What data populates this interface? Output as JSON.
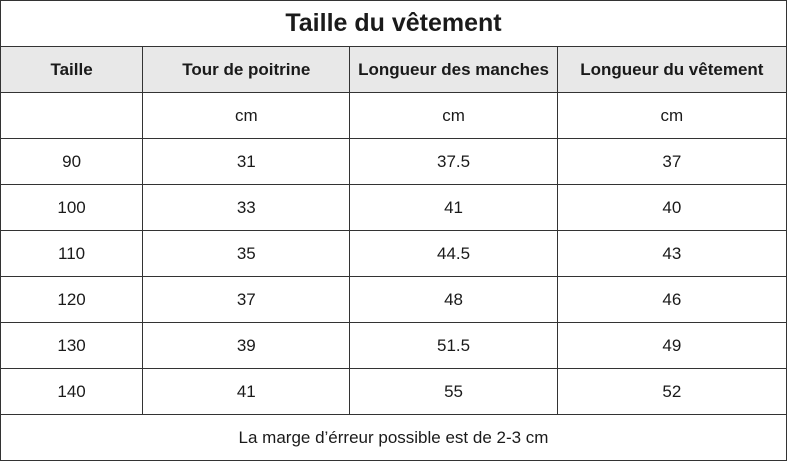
{
  "title": "Taille du vêtement",
  "headers": [
    "Taille",
    "Tour de poitrine",
    "Longueur des manches",
    "Longueur du vêtement"
  ],
  "units": [
    "",
    "cm",
    "cm",
    "cm"
  ],
  "rows": [
    [
      "90",
      "31",
      "37.5",
      "37"
    ],
    [
      "100",
      "33",
      "41",
      "40"
    ],
    [
      "110",
      "35",
      "44.5",
      "43"
    ],
    [
      "120",
      "37",
      "48",
      "46"
    ],
    [
      "130",
      "39",
      "51.5",
      "49"
    ],
    [
      "140",
      "41",
      "55",
      "52"
    ]
  ],
  "footer": "La marge d’érreur possible est de 2-3 cm"
}
